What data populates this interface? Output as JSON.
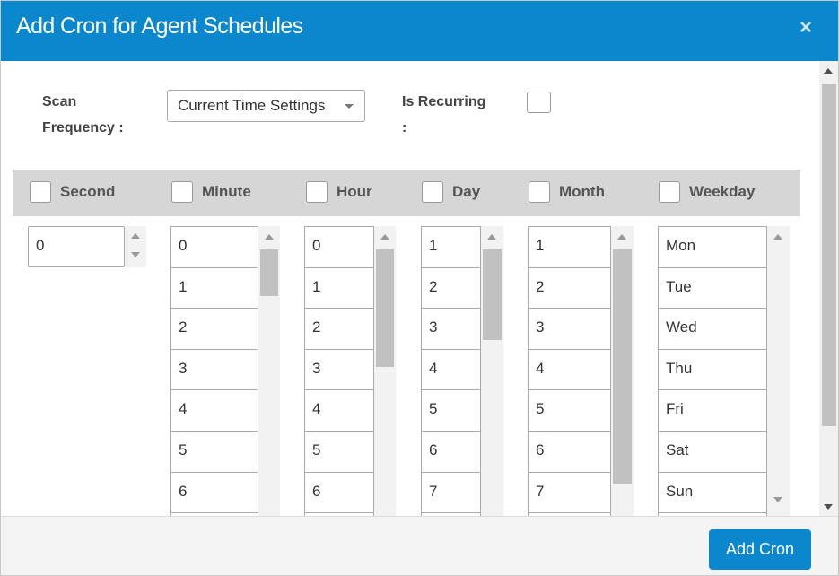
{
  "header": {
    "title": "Add Cron for Agent Schedules",
    "close": "×"
  },
  "form": {
    "scan_frequency_label": "Scan Frequency :",
    "scan_frequency_value": "Current Time Settings",
    "is_recurring_label": "Is Recurring :"
  },
  "columns": [
    {
      "name": "Second",
      "items": [
        "0"
      ]
    },
    {
      "name": "Minute",
      "items": [
        "0",
        "1",
        "2",
        "3",
        "4",
        "5",
        "6"
      ]
    },
    {
      "name": "Hour",
      "items": [
        "0",
        "1",
        "2",
        "3",
        "4",
        "5",
        "6"
      ]
    },
    {
      "name": "Day",
      "items": [
        "1",
        "2",
        "3",
        "4",
        "5",
        "6",
        "7"
      ]
    },
    {
      "name": "Month",
      "items": [
        "1",
        "2",
        "3",
        "4",
        "5",
        "6",
        "7"
      ]
    },
    {
      "name": "Weekday",
      "items": [
        "Mon",
        "Tue",
        "Wed",
        "Thu",
        "Fri",
        "Sat",
        "Sun"
      ]
    }
  ],
  "footer": {
    "button": "Add Cron"
  }
}
